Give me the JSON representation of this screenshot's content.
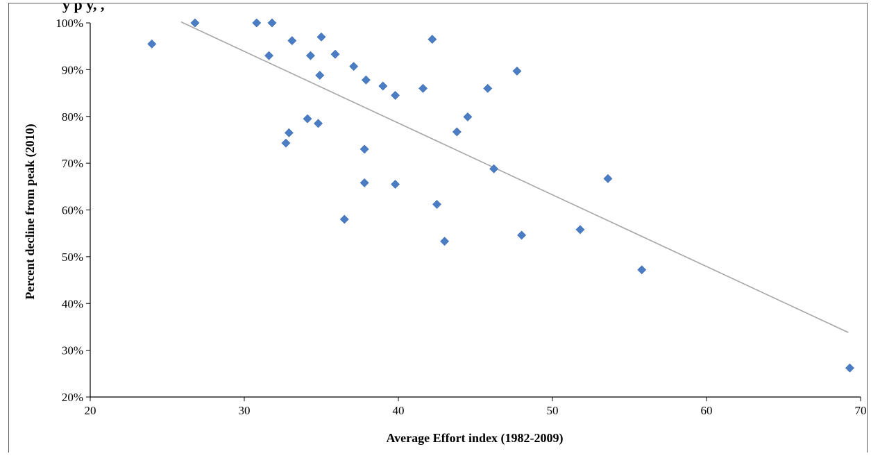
{
  "title_fragment": "y        p               y,                      ,",
  "chart_data": {
    "type": "scatter",
    "xlabel": "Average Effort index (1982-2009)",
    "ylabel": "Percent decline from peak (2010)",
    "xlim": [
      20,
      70
    ],
    "ylim": [
      20,
      100
    ],
    "x_ticks": [
      20,
      30,
      40,
      50,
      60,
      70
    ],
    "x_tick_labels": [
      "20",
      "30",
      "40",
      "50",
      "60",
      "70"
    ],
    "y_ticks": [
      20,
      30,
      40,
      50,
      60,
      70,
      80,
      90,
      100
    ],
    "y_tick_labels": [
      "20%",
      "30%",
      "40%",
      "50%",
      "60%",
      "70%",
      "80%",
      "90%",
      "100%"
    ],
    "grid": false,
    "legend": "none",
    "marker": "diamond",
    "marker_color": "#4a7dc4",
    "trendline_color": "#a6a6a6",
    "points": [
      {
        "x": 24.0,
        "y": 95.5
      },
      {
        "x": 26.8,
        "y": 100.0
      },
      {
        "x": 30.8,
        "y": 100.0
      },
      {
        "x": 31.8,
        "y": 100.0
      },
      {
        "x": 31.6,
        "y": 93.0
      },
      {
        "x": 33.1,
        "y": 96.2
      },
      {
        "x": 34.3,
        "y": 93.0
      },
      {
        "x": 35.0,
        "y": 97.0
      },
      {
        "x": 35.9,
        "y": 93.3
      },
      {
        "x": 34.9,
        "y": 88.8
      },
      {
        "x": 37.1,
        "y": 90.7
      },
      {
        "x": 37.9,
        "y": 87.8
      },
      {
        "x": 39.0,
        "y": 86.5
      },
      {
        "x": 39.8,
        "y": 84.5
      },
      {
        "x": 41.6,
        "y": 86.0
      },
      {
        "x": 42.2,
        "y": 96.5
      },
      {
        "x": 45.8,
        "y": 86.0
      },
      {
        "x": 47.7,
        "y": 89.7
      },
      {
        "x": 44.5,
        "y": 79.9
      },
      {
        "x": 43.8,
        "y": 76.7
      },
      {
        "x": 34.1,
        "y": 79.5
      },
      {
        "x": 34.8,
        "y": 78.5
      },
      {
        "x": 32.9,
        "y": 76.5
      },
      {
        "x": 32.7,
        "y": 74.3
      },
      {
        "x": 37.8,
        "y": 73.0
      },
      {
        "x": 37.8,
        "y": 65.8
      },
      {
        "x": 39.8,
        "y": 65.5
      },
      {
        "x": 46.2,
        "y": 68.8
      },
      {
        "x": 36.5,
        "y": 58.0
      },
      {
        "x": 42.5,
        "y": 61.2
      },
      {
        "x": 43.0,
        "y": 53.3
      },
      {
        "x": 48.0,
        "y": 54.6
      },
      {
        "x": 51.8,
        "y": 55.8
      },
      {
        "x": 53.6,
        "y": 66.7
      },
      {
        "x": 55.8,
        "y": 47.2
      },
      {
        "x": 69.3,
        "y": 26.2
      }
    ],
    "trendline": {
      "x": [
        25.9,
        69.2
      ],
      "y": [
        100.2,
        33.8
      ]
    }
  }
}
